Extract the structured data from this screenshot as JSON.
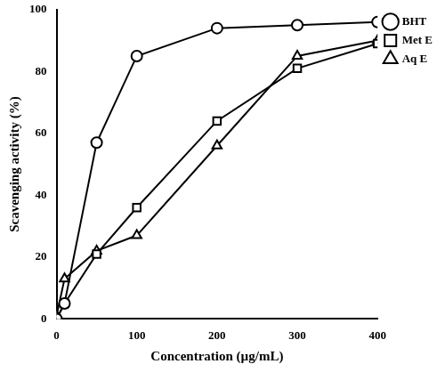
{
  "chart_data": {
    "type": "line",
    "x_label": "Concentration (µg/mL)",
    "y_label": "Scavenging activity (%)",
    "x": [
      0,
      10,
      50,
      100,
      200,
      300,
      400
    ],
    "series": [
      {
        "name": "BHT",
        "color": "#000000",
        "marker": "circle",
        "values": [
          0,
          5,
          57,
          85,
          94,
          95,
          96
        ]
      },
      {
        "name": "Met E",
        "color": "#000000",
        "marker": "rect",
        "values": [
          0,
          5,
          21,
          36,
          64,
          81,
          89
        ]
      },
      {
        "name": "Aq E",
        "color": "#000000",
        "marker": "triangle",
        "values": [
          1,
          13,
          22,
          27,
          56,
          85,
          90
        ]
      }
    ],
    "xlim": [
      0,
      400
    ],
    "xticks": [
      0,
      100,
      200,
      300,
      400
    ],
    "ylim": [
      0,
      100
    ],
    "yticks": [
      0,
      20,
      40,
      60,
      80,
      100
    ],
    "grid": false,
    "legend": "top right"
  }
}
